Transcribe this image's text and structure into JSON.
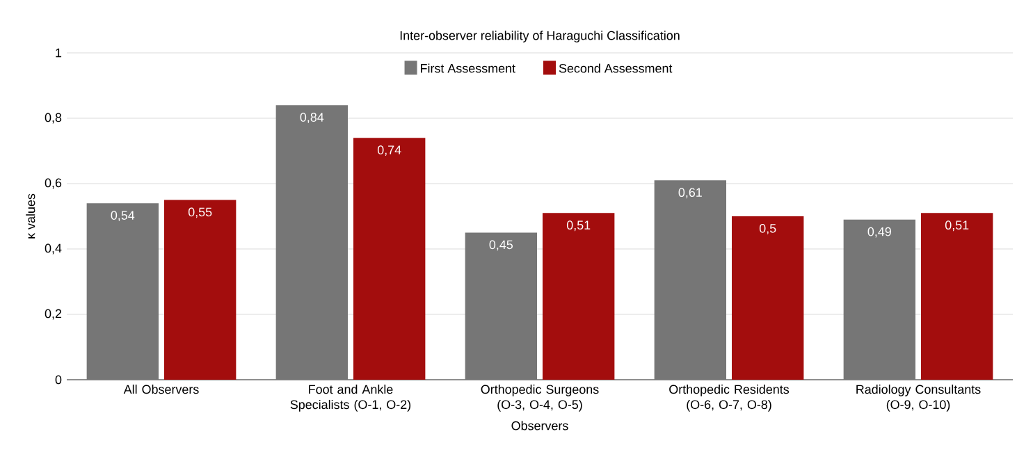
{
  "chart_data": {
    "type": "bar",
    "title": "Inter-observer reliability of Haraguchi Classification",
    "xlabel": "Observers",
    "ylabel": "κ values",
    "categories": [
      "All Observers",
      "Foot and Ankle Specialists (O-1, O-2)",
      "Orthopedic Surgeons (O-3, O-4, O-5)",
      "Orthopedic Residents (O-6, O-7, O-8)",
      "Radiology Consultants (O-9, O-10)"
    ],
    "series": [
      {
        "name": "First Assessment",
        "color": "#767676",
        "values": [
          0.54,
          0.84,
          0.45,
          0.61,
          0.49
        ],
        "value_labels": [
          "0,54",
          "0,84",
          "0,45",
          "0,61",
          "0,49"
        ]
      },
      {
        "name": "Second Assessment",
        "color": "#a30d0d",
        "values": [
          0.55,
          0.74,
          0.51,
          0.5,
          0.51
        ],
        "value_labels": [
          "0,55",
          "0,74",
          "0,51",
          "0,5",
          "0,51"
        ]
      }
    ],
    "ylim": [
      0,
      1
    ],
    "yticks": [
      0,
      {
        "value": 0.2,
        "label": "0,2"
      },
      {
        "value": 0.4,
        "label": "0,4"
      },
      {
        "value": 0.6,
        "label": "0,6"
      },
      {
        "value": 0.8,
        "label": "0,8"
      },
      1
    ],
    "grid": "y",
    "legend": "top"
  }
}
